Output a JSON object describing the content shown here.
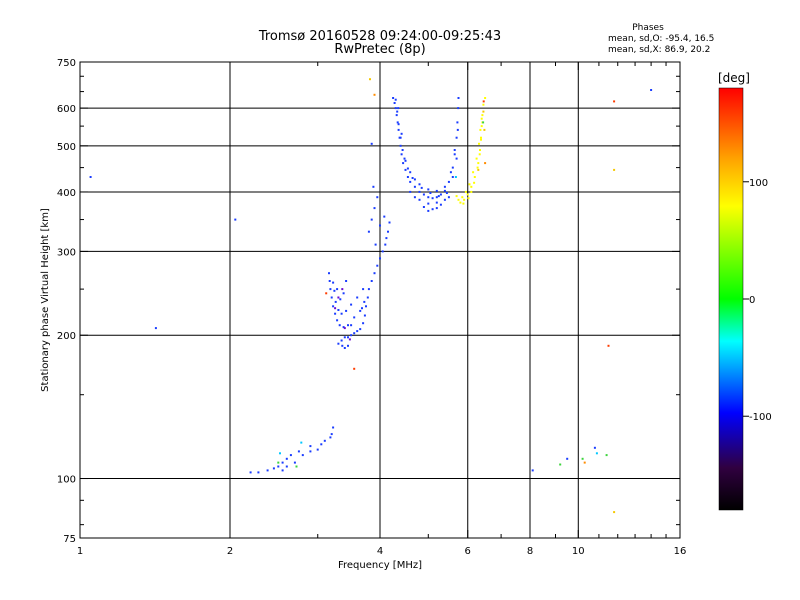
{
  "chart_data": {
    "type": "scatter",
    "title": "Tromsø 20160528 09:24:00-09:25:43",
    "subtitle": "RwPretec (8p)",
    "xlabel": "Frequency [MHz]",
    "ylabel": "Stationary phase Virtual Height [km]",
    "x_scale": "log",
    "y_scale": "log",
    "xlim": [
      1,
      16
    ],
    "ylim": [
      75,
      750
    ],
    "x_ticks": [
      1,
      2,
      4,
      6,
      8,
      10,
      16
    ],
    "y_ticks": [
      75,
      100,
      200,
      300,
      400,
      500,
      600,
      750
    ],
    "x_major_grid": [
      2,
      4,
      6,
      8,
      10
    ],
    "y_major_grid": [
      100,
      200,
      300,
      400,
      500,
      600
    ],
    "grid": true,
    "phase_box": {
      "title": "Phases",
      "line_o": "mean, sd,O:  -95.4, 16.5",
      "line_x": "mean, sd,X:   86.9, 20.2"
    },
    "colorbar": {
      "label": "[deg]",
      "range": [
        -180,
        180
      ],
      "ticks": [
        100,
        0,
        -100
      ],
      "colors": [
        "#ff0000",
        "#ffa500",
        "#ffff00",
        "#00ff00",
        "#00ffff",
        "#0000ff",
        "#300040",
        "#000000"
      ]
    },
    "series": [
      {
        "color": "#1a3cff",
        "points": [
          [
            4.25,
            630
          ],
          [
            4.28,
            615
          ],
          [
            4.3,
            600
          ],
          [
            4.32,
            580
          ],
          [
            4.34,
            560
          ],
          [
            4.36,
            540
          ],
          [
            4.38,
            520
          ],
          [
            4.4,
            500
          ],
          [
            4.42,
            480
          ],
          [
            4.45,
            460
          ],
          [
            4.5,
            445
          ],
          [
            4.55,
            430
          ],
          [
            4.6,
            420
          ],
          [
            4.7,
            410
          ],
          [
            4.8,
            400
          ],
          [
            4.9,
            395
          ],
          [
            5.0,
            390
          ],
          [
            5.1,
            388
          ],
          [
            5.2,
            390
          ],
          [
            5.3,
            395
          ],
          [
            5.4,
            402
          ],
          [
            5.5,
            420
          ],
          [
            5.6,
            450
          ],
          [
            5.65,
            480
          ],
          [
            5.7,
            520
          ],
          [
            5.72,
            560
          ],
          [
            5.74,
            600
          ],
          [
            5.75,
            630
          ],
          [
            4.3,
            625
          ],
          [
            4.33,
            590
          ],
          [
            4.36,
            555
          ],
          [
            4.4,
            520
          ],
          [
            4.44,
            490
          ],
          [
            4.5,
            465
          ],
          [
            4.6,
            440
          ],
          [
            4.7,
            425
          ],
          [
            4.8,
            415
          ],
          [
            5.0,
            405
          ],
          [
            5.2,
            402
          ],
          [
            5.4,
            410
          ],
          [
            5.55,
            440
          ],
          [
            5.65,
            490
          ],
          [
            4.35,
            600
          ],
          [
            4.42,
            530
          ],
          [
            4.48,
            470
          ],
          [
            4.55,
            448
          ],
          [
            4.65,
            428
          ],
          [
            4.85,
            408
          ],
          [
            5.05,
            398
          ],
          [
            5.25,
            392
          ],
          [
            5.45,
            398
          ],
          [
            5.6,
            430
          ],
          [
            5.7,
            470
          ],
          [
            5.73,
            540
          ],
          [
            4.6,
            400
          ],
          [
            4.8,
            385
          ],
          [
            5.0,
            378
          ],
          [
            5.2,
            380
          ],
          [
            5.4,
            385
          ],
          [
            4.7,
            390
          ],
          [
            4.9,
            372
          ],
          [
            5.1,
            368
          ],
          [
            5.3,
            376
          ],
          [
            5.5,
            390
          ],
          [
            5.0,
            365
          ],
          [
            5.2,
            370
          ],
          [
            4.15,
            330
          ],
          [
            4.12,
            320
          ],
          [
            4.1,
            310
          ],
          [
            4.05,
            300
          ],
          [
            4.0,
            290
          ],
          [
            3.95,
            280
          ],
          [
            3.9,
            270
          ],
          [
            3.85,
            260
          ],
          [
            3.8,
            250
          ],
          [
            3.78,
            240
          ],
          [
            3.75,
            230
          ],
          [
            3.73,
            220
          ],
          [
            3.7,
            212
          ],
          [
            3.65,
            206
          ],
          [
            3.6,
            204
          ],
          [
            3.5,
            200
          ],
          [
            3.4,
            198
          ],
          [
            3.35,
            195
          ],
          [
            3.3,
            192
          ],
          [
            3.65,
            225
          ],
          [
            3.55,
            218
          ],
          [
            3.45,
            210
          ],
          [
            3.38,
            208
          ],
          [
            3.32,
            210
          ],
          [
            3.28,
            215
          ],
          [
            3.25,
            222
          ],
          [
            3.22,
            230
          ],
          [
            3.2,
            240
          ],
          [
            3.18,
            250
          ],
          [
            3.17,
            260
          ],
          [
            3.16,
            270
          ],
          [
            3.6,
            240
          ],
          [
            3.5,
            232
          ],
          [
            3.42,
            225
          ],
          [
            3.35,
            222
          ],
          [
            3.3,
            226
          ],
          [
            3.26,
            235
          ],
          [
            3.24,
            248
          ],
          [
            3.22,
            258
          ],
          [
            3.7,
            250
          ],
          [
            3.72,
            235
          ],
          [
            3.68,
            228
          ],
          [
            3.42,
            260
          ],
          [
            3.38,
            245
          ],
          [
            3.33,
            238
          ],
          [
            3.28,
            250
          ],
          [
            3.5,
            210
          ],
          [
            3.55,
            202
          ],
          [
            3.45,
            198
          ],
          [
            3.36,
            190
          ],
          [
            3.4,
            188
          ],
          [
            3.45,
            190
          ],
          [
            3.8,
            330
          ],
          [
            3.85,
            350
          ],
          [
            3.9,
            370
          ],
          [
            3.95,
            390
          ],
          [
            4.0,
            340
          ],
          [
            3.92,
            310
          ],
          [
            4.08,
            355
          ],
          [
            4.18,
            345
          ],
          [
            3.22,
            128
          ],
          [
            3.2,
            124
          ],
          [
            3.18,
            122
          ],
          [
            3.1,
            120
          ],
          [
            3.05,
            118
          ],
          [
            2.9,
            117
          ],
          [
            2.75,
            114
          ],
          [
            2.65,
            112
          ],
          [
            2.6,
            110
          ],
          [
            2.55,
            108
          ],
          [
            2.5,
            106
          ],
          [
            2.45,
            105
          ],
          [
            2.38,
            104
          ],
          [
            2.28,
            103
          ],
          [
            2.2,
            103
          ],
          [
            2.55,
            104
          ],
          [
            2.6,
            106
          ],
          [
            2.7,
            108
          ],
          [
            2.8,
            112
          ],
          [
            2.9,
            114
          ],
          [
            3.0,
            115
          ],
          [
            2.05,
            350
          ],
          [
            1.05,
            430
          ],
          [
            1.42,
            207
          ],
          [
            8.1,
            104
          ],
          [
            9.5,
            110
          ],
          [
            10.8,
            116
          ],
          [
            14.0,
            655
          ],
          [
            3.85,
            505
          ],
          [
            3.88,
            410
          ]
        ]
      },
      {
        "color": "#ffff00",
        "points": [
          [
            5.8,
            380
          ],
          [
            5.9,
            385
          ],
          [
            6.0,
            395
          ],
          [
            6.1,
            410
          ],
          [
            6.2,
            430
          ],
          [
            6.3,
            460
          ],
          [
            6.35,
            490
          ],
          [
            6.38,
            520
          ],
          [
            6.4,
            550
          ],
          [
            6.42,
            580
          ],
          [
            6.45,
            610
          ],
          [
            6.5,
            630
          ],
          [
            5.85,
            390
          ],
          [
            5.95,
            400
          ],
          [
            6.05,
            415
          ],
          [
            6.15,
            440
          ],
          [
            6.25,
            470
          ],
          [
            6.32,
            505
          ],
          [
            6.36,
            540
          ],
          [
            6.4,
            570
          ],
          [
            5.75,
            385
          ],
          [
            5.88,
            378
          ],
          [
            6.02,
            388
          ],
          [
            6.18,
            418
          ],
          [
            6.28,
            450
          ],
          [
            6.34,
            480
          ],
          [
            6.38,
            515
          ],
          [
            6.42,
            560
          ],
          [
            5.7,
            392
          ],
          [
            6.1,
            400
          ]
        ]
      },
      {
        "color": "#f5c800",
        "points": [
          [
            6.45,
            590
          ],
          [
            6.48,
            540
          ],
          [
            6.3,
            445
          ],
          [
            3.82,
            690
          ],
          [
            11.8,
            85
          ],
          [
            11.8,
            445
          ]
        ]
      },
      {
        "color": "#3cd43c",
        "points": [
          [
            2.72,
            106
          ],
          [
            2.5,
            108
          ],
          [
            9.2,
            107
          ],
          [
            10.2,
            110
          ],
          [
            11.4,
            112
          ],
          [
            6.44,
            560
          ]
        ]
      },
      {
        "color": "#00c8ff",
        "points": [
          [
            2.78,
            119
          ],
          [
            2.52,
            113
          ],
          [
            10.9,
            113
          ],
          [
            5.68,
            430
          ]
        ]
      },
      {
        "color": "#ff3c00",
        "points": [
          [
            3.55,
            170
          ],
          [
            3.12,
            245
          ],
          [
            11.5,
            190
          ],
          [
            11.8,
            620
          ],
          [
            6.46,
            620
          ]
        ]
      },
      {
        "color": "#ff8c00",
        "points": [
          [
            10.3,
            108
          ],
          [
            3.9,
            640
          ],
          [
            6.5,
            460
          ]
        ]
      },
      {
        "color": "#6a0ad0",
        "points": [
          [
            3.3,
            240
          ],
          [
            3.36,
            250
          ],
          [
            3.48,
            196
          ],
          [
            3.4,
            207
          ],
          [
            3.25,
            228
          ]
        ]
      }
    ]
  }
}
